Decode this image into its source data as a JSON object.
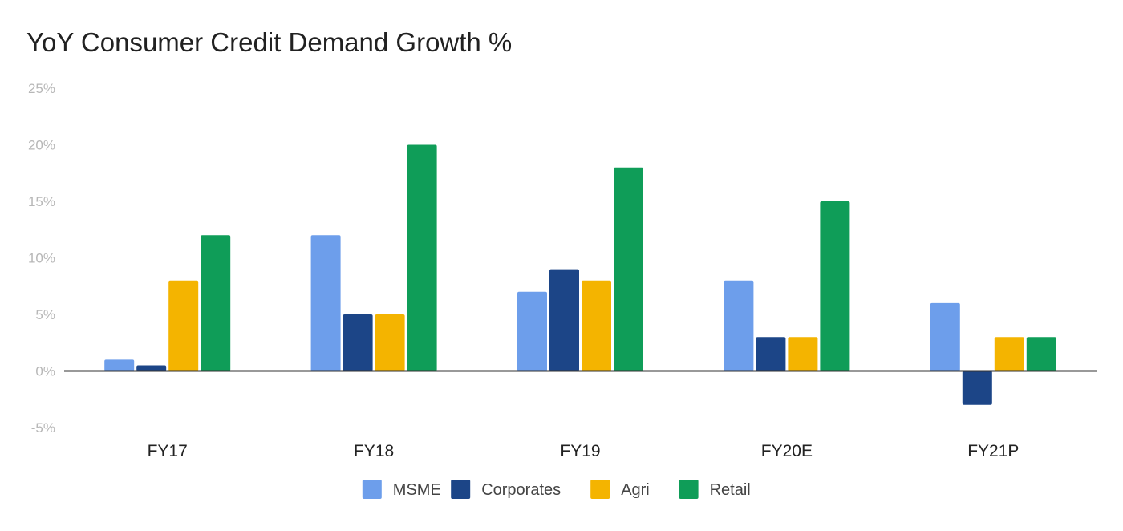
{
  "chart_data": {
    "type": "bar",
    "title": "YoY Consumer Credit Demand Growth %",
    "xlabel": "",
    "ylabel": "",
    "categories": [
      "FY17",
      "FY18",
      "FY19",
      "FY20E",
      "FY21P"
    ],
    "series": [
      {
        "name": "MSME",
        "color": "#6d9eeb",
        "values": [
          1,
          12,
          7,
          8,
          6
        ]
      },
      {
        "name": "Corporates",
        "color": "#1c4587",
        "values": [
          0.5,
          5,
          9,
          3,
          -3
        ]
      },
      {
        "name": "Agri",
        "color": "#f4b400",
        "values": [
          8,
          5,
          8,
          3,
          3
        ]
      },
      {
        "name": "Retail",
        "color": "#0f9d58",
        "values": [
          12,
          20,
          18,
          15,
          3
        ]
      }
    ],
    "ylim": [
      -5,
      25
    ],
    "yticks": [
      "-5%",
      "0%",
      "5%",
      "10%",
      "15%",
      "20%",
      "25%"
    ],
    "ytick_values": [
      -5,
      0,
      5,
      10,
      15,
      20,
      25
    ],
    "gridlines": false,
    "legend_position": "bottom"
  }
}
